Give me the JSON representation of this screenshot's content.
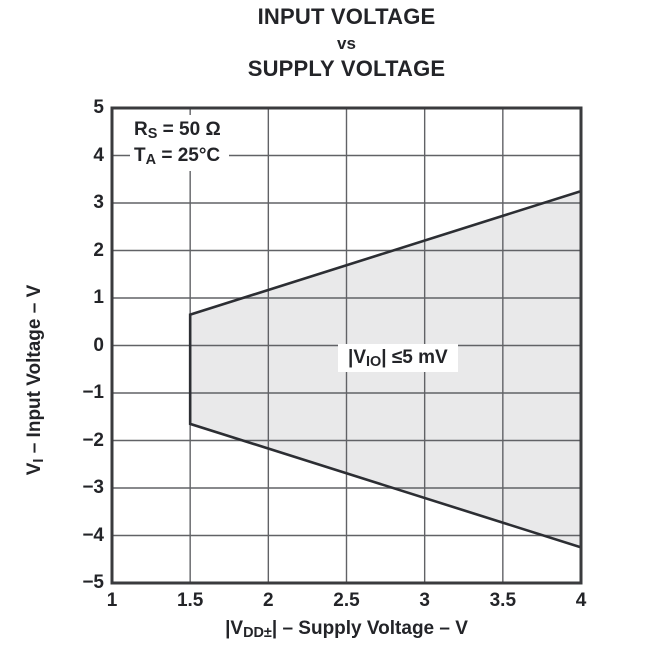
{
  "title": {
    "line1": "INPUT VOLTAGE",
    "line2": "vs",
    "line3": "SUPPLY VOLTAGE"
  },
  "conditions": {
    "line1": {
      "base": "R",
      "sub": "S",
      "rest": " = 50 Ω"
    },
    "line2": {
      "base": "T",
      "sub": "A",
      "rest": " = 25°C"
    }
  },
  "region_label": {
    "p1": "|V",
    "sub": "IO",
    "p2": "| ≤5 mV"
  },
  "x_axis": {
    "title": {
      "p1": "|V",
      "sub": "DD±",
      "p2": "| – Supply Voltage – V"
    },
    "tick_labels": [
      "1",
      "1.5",
      "2",
      "2.5",
      "3",
      "3.5",
      "4"
    ]
  },
  "y_axis": {
    "title": {
      "p1": "V",
      "sub": "I",
      "p2": " – Input Voltage – V"
    },
    "tick_labels": [
      "5",
      "4",
      "3",
      "2",
      "1",
      "0",
      "−1",
      "−2",
      "−3",
      "−4",
      "−5"
    ]
  },
  "chart_data": {
    "type": "area",
    "title": "INPUT VOLTAGE vs SUPPLY VOLTAGE",
    "xlabel": "|VDD±| – Supply Voltage – V",
    "ylabel": "VI – Input Voltage – V",
    "xlim": [
      1,
      4
    ],
    "ylim": [
      -5,
      5
    ],
    "x_ticks": [
      1,
      1.5,
      2,
      2.5,
      3,
      3.5,
      4
    ],
    "y_ticks": [
      -5,
      -4,
      -3,
      -2,
      -1,
      0,
      1,
      2,
      3,
      4,
      5
    ],
    "grid": true,
    "legend": "none",
    "conditions": [
      "RS = 50 Ω",
      "TA = 25°C"
    ],
    "region": {
      "name": "valid-input-voltage-region",
      "label": "|VIO| ≤5 mV",
      "vertices_x": [
        1.5,
        4,
        4,
        1.5
      ],
      "vertices_y": [
        0.65,
        3.25,
        -4.25,
        -1.65
      ],
      "upper_boundary": {
        "x": [
          1.5,
          4
        ],
        "y": [
          0.65,
          3.25
        ]
      },
      "lower_boundary": {
        "x": [
          1.5,
          4
        ],
        "y": [
          -1.65,
          -4.25
        ]
      }
    },
    "colors": {
      "region_fill": "#e9e9ea",
      "boundary": "#2c2e33",
      "grid": "#616266",
      "frame": "#3a3b3e",
      "text": "#232428",
      "background": "#ffffff"
    }
  }
}
